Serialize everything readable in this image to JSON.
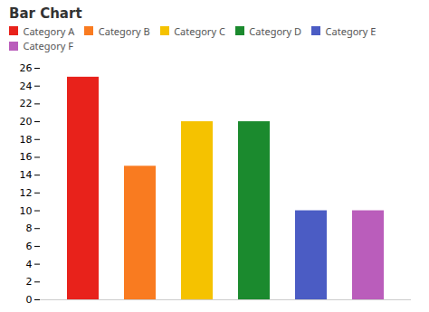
{
  "chart_data": {
    "type": "bar",
    "title": "Bar Chart",
    "categories": [
      "Category A",
      "Category B",
      "Category C",
      "Category D",
      "Category E",
      "Category F"
    ],
    "values": [
      25,
      15,
      20,
      20,
      10,
      10
    ],
    "colors": [
      "#E8221B",
      "#F97B20",
      "#F5C200",
      "#1B8A2E",
      "#4B5CC4",
      "#BA5DBB"
    ],
    "ylim": [
      0,
      26
    ],
    "yticks": [
      0,
      2,
      4,
      6,
      8,
      10,
      12,
      14,
      16,
      18,
      20,
      22,
      24,
      26
    ],
    "grid": false,
    "legend": "upper right",
    "tick_labels": "y"
  }
}
